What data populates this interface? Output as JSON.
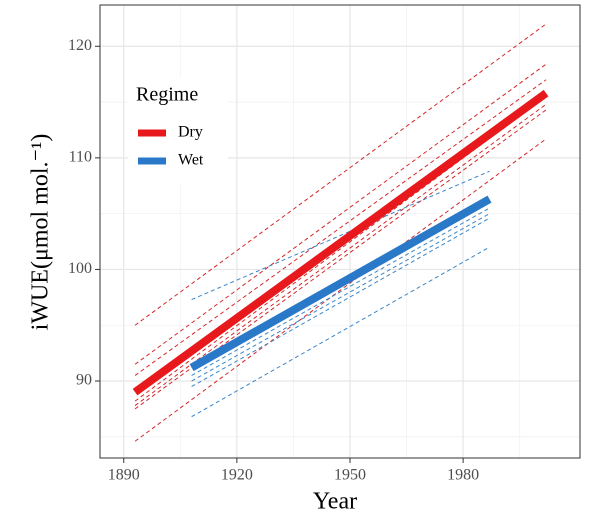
{
  "chart_data": {
    "type": "line",
    "x_label": "Year",
    "y_label": "iWUE(μmol mol.⁻¹)",
    "legend_title": "Regime",
    "legend_position": "top-left",
    "grid": true,
    "xlim": [
      1883.7,
      2011
    ],
    "ylim": [
      83.1,
      123.7
    ],
    "xticks": [
      1890,
      1920,
      1950,
      1980
    ],
    "yticks": [
      90,
      100,
      110,
      120
    ],
    "xminorticks": [
      1905,
      1935,
      1965,
      1995
    ],
    "yminorticks": [
      85,
      95,
      105,
      115
    ],
    "series": [
      {
        "color": "#d62728",
        "dash": true,
        "x": [
          1893,
          2002
        ],
        "values": [
          95,
          122
        ]
      },
      {
        "color": "#d62728",
        "dash": true,
        "x": [
          1893,
          2002
        ],
        "values": [
          91.5,
          118.4
        ]
      },
      {
        "color": "#d62728",
        "dash": true,
        "x": [
          1893,
          2002
        ],
        "values": [
          90.5,
          117
        ]
      },
      {
        "color": "#d62728",
        "dash": true,
        "x": [
          1893,
          2002
        ],
        "values": [
          88.2,
          115.5
        ]
      },
      {
        "color": "#d62728",
        "dash": true,
        "x": [
          1893,
          2002
        ],
        "values": [
          87.8,
          114.8
        ]
      },
      {
        "color": "#d62728",
        "dash": true,
        "x": [
          1893,
          2002
        ],
        "values": [
          87.5,
          114.3
        ]
      },
      {
        "color": "#d62728",
        "dash": true,
        "x": [
          1893,
          2002
        ],
        "values": [
          84.6,
          111.7
        ]
      },
      {
        "color": "#3a86c8",
        "dash": true,
        "x": [
          1908,
          1987
        ],
        "values": [
          97.3,
          108.8
        ]
      },
      {
        "color": "#3a86c8",
        "dash": true,
        "x": [
          1908,
          1987
        ],
        "values": [
          90.5,
          105.5
        ]
      },
      {
        "color": "#3a86c8",
        "dash": true,
        "x": [
          1908,
          1987
        ],
        "values": [
          90,
          105
        ]
      },
      {
        "color": "#3a86c8",
        "dash": true,
        "x": [
          1908,
          1987
        ],
        "values": [
          89.5,
          104.6
        ]
      },
      {
        "color": "#3a86c8",
        "dash": true,
        "x": [
          1908,
          1987
        ],
        "values": [
          86.8,
          102
        ]
      },
      {
        "name": "Dry",
        "color": "#e8191c",
        "dash": false,
        "x": [
          1893,
          2002
        ],
        "values": [
          89,
          115.8
        ]
      },
      {
        "name": "Wet",
        "color": "#2a78c8",
        "dash": false,
        "x": [
          1908,
          1987
        ],
        "values": [
          91.2,
          106.3
        ]
      }
    ]
  }
}
